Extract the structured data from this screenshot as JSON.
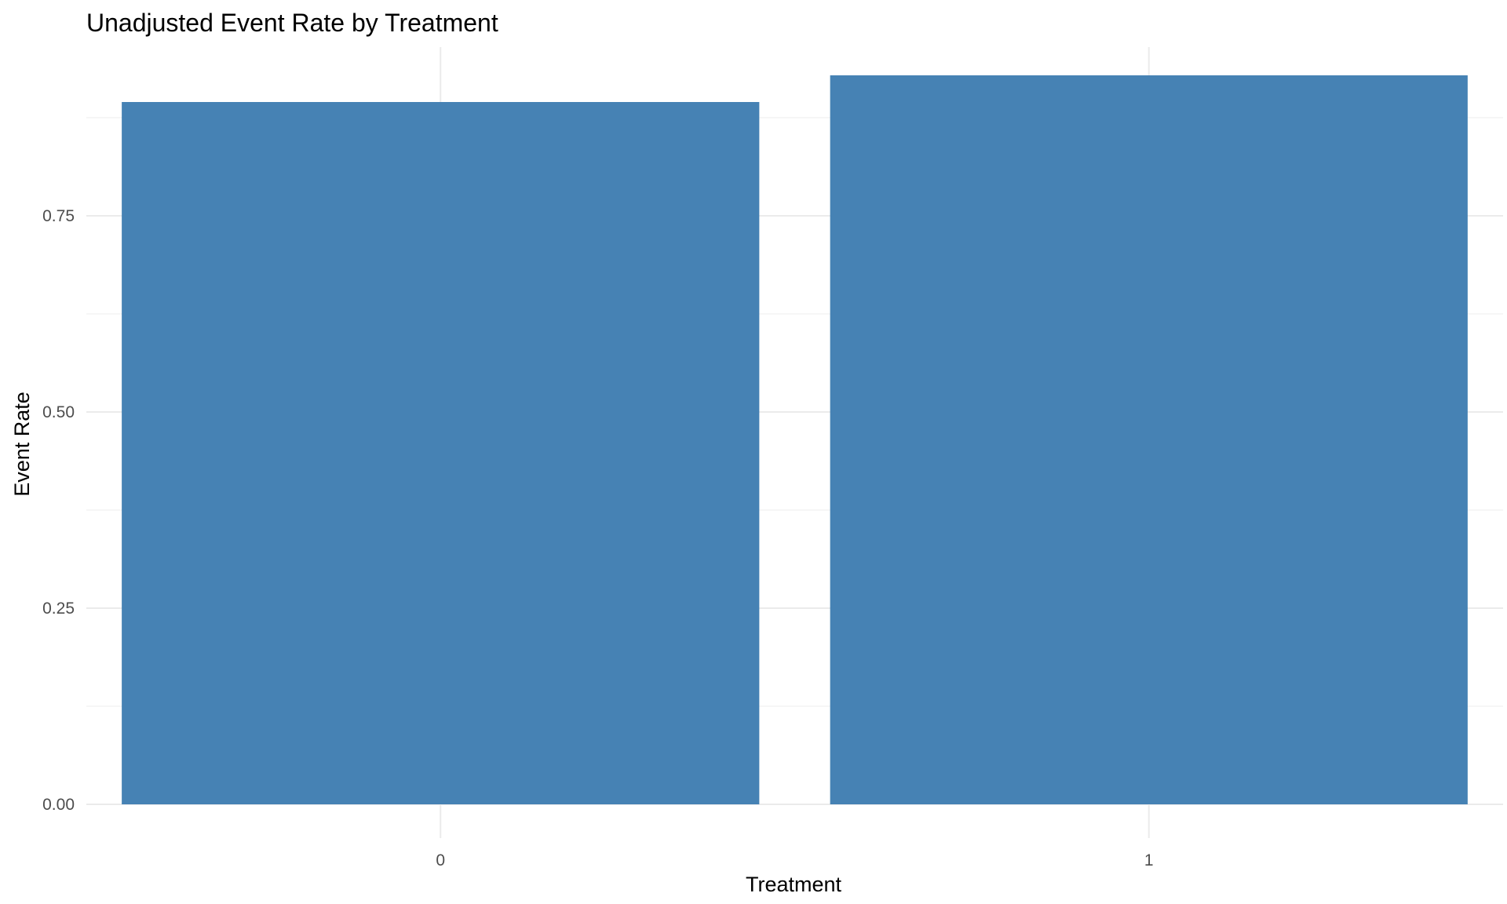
{
  "chart_data": {
    "type": "bar",
    "title": "Unadjusted Event Rate by Treatment",
    "xlabel": "Treatment",
    "ylabel": "Event Rate",
    "categories": [
      "0",
      "1"
    ],
    "values": [
      0.895,
      0.929
    ],
    "ylim": [
      0,
      0.965
    ],
    "yticks": [
      0.0,
      0.25,
      0.5,
      0.75
    ],
    "ytick_labels": [
      "0.00",
      "0.25",
      "0.50",
      "0.75"
    ],
    "grid": true,
    "bar_color": "#4682B4"
  }
}
